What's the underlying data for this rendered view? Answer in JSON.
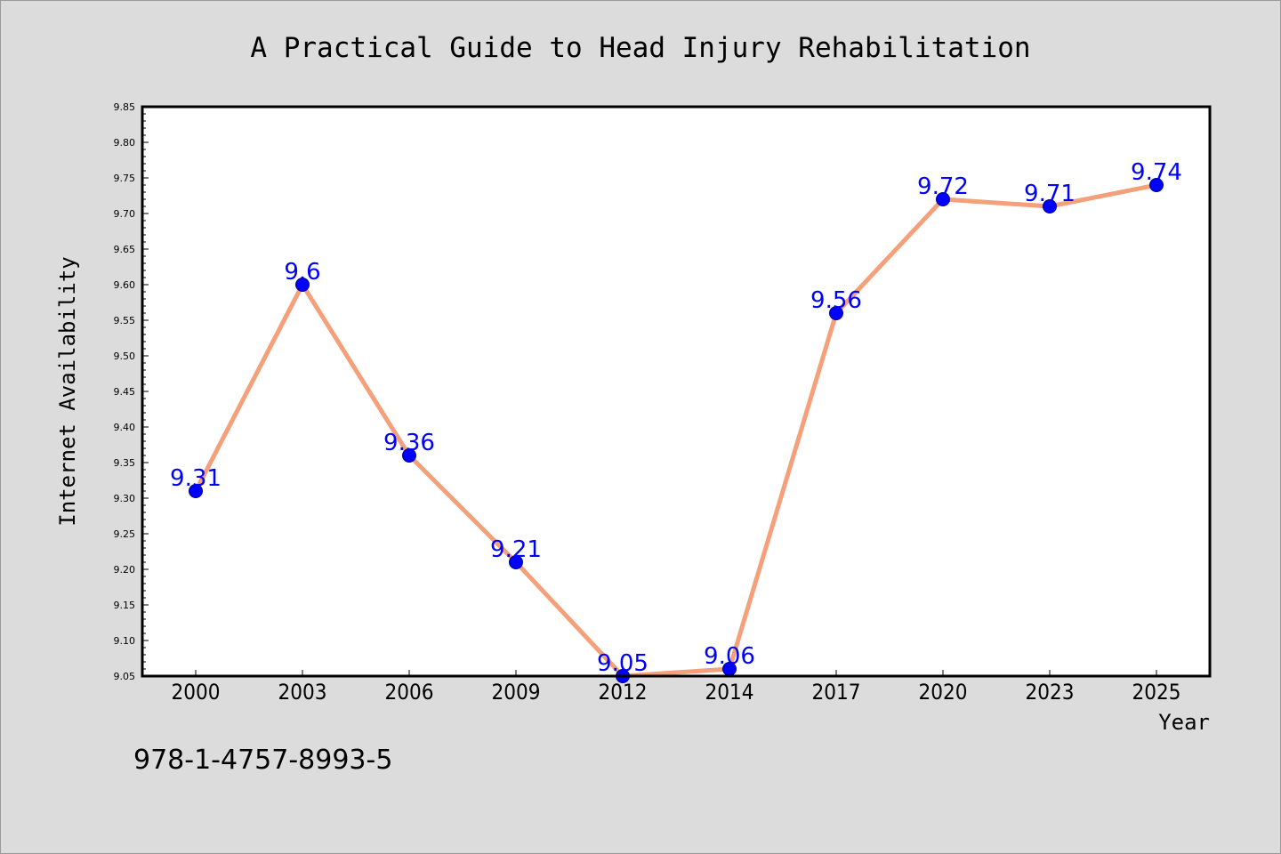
{
  "chart_data": {
    "type": "line",
    "title": "A Practical Guide to Head Injury Rehabilitation",
    "xlabel": "Year",
    "ylabel": "Internet Availability",
    "categories": [
      "2000",
      "2003",
      "2006",
      "2009",
      "2012",
      "2014",
      "2017",
      "2020",
      "2023",
      "2025"
    ],
    "series": [
      {
        "values": [
          9.31,
          9.6,
          9.36,
          9.21,
          9.05,
          9.06,
          9.56,
          9.72,
          9.71,
          9.74
        ],
        "data_labels": [
          "9.31",
          "9.6",
          "9.36",
          "9.21",
          "9.05",
          "9.06",
          "9.56",
          "9.72",
          "9.71",
          "9.74"
        ]
      }
    ],
    "ylim": [
      9.05,
      9.85
    ],
    "yticks": [
      "9.05",
      "9.10",
      "9.15",
      "9.20",
      "9.25",
      "9.30",
      "9.35",
      "9.40",
      "9.45",
      "9.50",
      "9.55",
      "9.60",
      "9.65",
      "9.70",
      "9.75",
      "9.80",
      "9.85"
    ],
    "grid": false,
    "legend": "none",
    "colors": {
      "line": "#f4a07a",
      "marker_fill": "#0000ff",
      "marker_edge": "#000080",
      "data_label": "#0000ff",
      "plot_background": "#ffffff",
      "figure_background": "#dcdcdc"
    }
  },
  "footer": {
    "isbn": "978-1-4757-8993-5"
  }
}
